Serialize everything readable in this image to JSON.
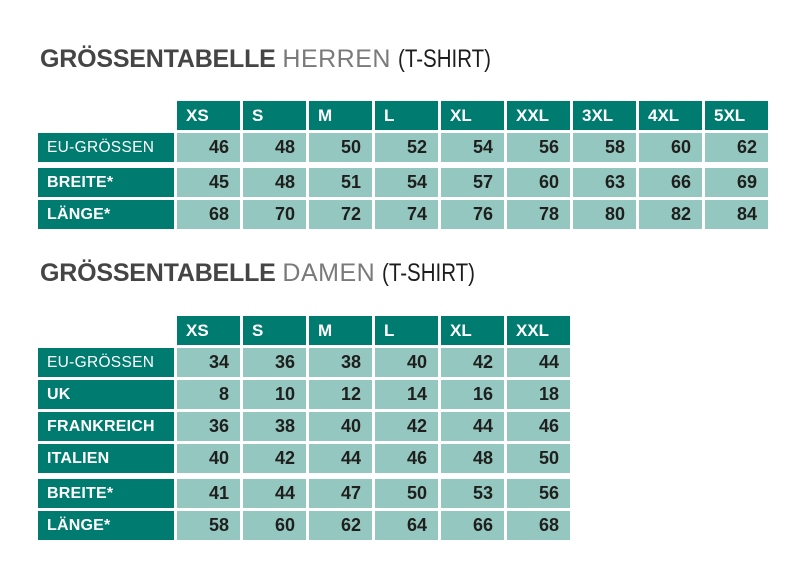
{
  "colors": {
    "header_teal": "#007b6f",
    "cell_teal": "#93c7bf",
    "number_text": "#1f1f1e",
    "title_main": "#454545",
    "title_variant": "#7a7a7a",
    "title_suffix": "#1d1d1d"
  },
  "sections": [
    {
      "title": {
        "main": "GRÖSSENTABELLE",
        "variant": "HERREN",
        "suffix": "(T-SHIRT)"
      },
      "table": {
        "columns": [
          "XS",
          "S",
          "M",
          "L",
          "XL",
          "XXL",
          "3XL",
          "4XL",
          "5XL"
        ],
        "rows": [
          {
            "label": "EU-GRÖSSEN",
            "bold": false,
            "group_gap_after": true,
            "values": [
              46,
              48,
              50,
              52,
              54,
              56,
              58,
              60,
              62
            ]
          },
          {
            "label": "BREITE*",
            "bold": true,
            "values": [
              45,
              48,
              51,
              54,
              57,
              60,
              63,
              66,
              69
            ]
          },
          {
            "label": "LÄNGE*",
            "bold": true,
            "values": [
              68,
              70,
              72,
              74,
              76,
              78,
              80,
              82,
              84
            ]
          }
        ]
      }
    },
    {
      "title": {
        "main": "GRÖSSENTABELLE",
        "variant": "DAMEN",
        "suffix": "(T-SHIRT)"
      },
      "table": {
        "columns": [
          "XS",
          "S",
          "M",
          "L",
          "XL",
          "XXL"
        ],
        "rows": [
          {
            "label": "EU-GRÖSSEN",
            "bold": false,
            "values": [
              34,
              36,
              38,
              40,
              42,
              44
            ]
          },
          {
            "label": "UK",
            "bold": true,
            "values": [
              8,
              10,
              12,
              14,
              16,
              18
            ]
          },
          {
            "label": "FRANKREICH",
            "bold": true,
            "values": [
              36,
              38,
              40,
              42,
              44,
              46
            ]
          },
          {
            "label": "ITALIEN",
            "bold": true,
            "group_gap_after": true,
            "values": [
              40,
              42,
              44,
              46,
              48,
              50
            ]
          },
          {
            "label": "BREITE*",
            "bold": true,
            "values": [
              41,
              44,
              47,
              50,
              53,
              56
            ]
          },
          {
            "label": "LÄNGE*",
            "bold": true,
            "values": [
              58,
              60,
              62,
              64,
              66,
              68
            ]
          }
        ]
      }
    }
  ]
}
